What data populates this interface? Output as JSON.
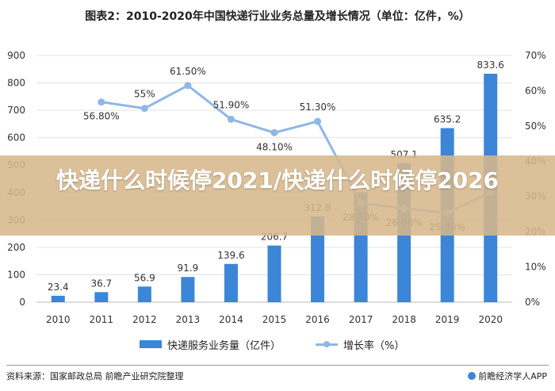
{
  "chart_data": {
    "type": "bar",
    "title": "图表2：2010-2020年中国快递行业业务总量及增长情况（单位：亿件，%）",
    "categories": [
      "2010",
      "2011",
      "2012",
      "2013",
      "2014",
      "2015",
      "2016",
      "2017",
      "2018",
      "2019",
      "2020"
    ],
    "series": [
      {
        "name": "快递服务业务量（亿件）",
        "type": "bar",
        "axis": "left",
        "values": [
          23.4,
          36.7,
          56.9,
          91.9,
          139.6,
          206.7,
          312.8,
          400.6,
          507.1,
          635.2,
          833.6
        ],
        "labels": [
          "23.4",
          "36.7",
          "56.9",
          "91.9",
          "139.6",
          "206.7",
          "312.8",
          "",
          "507.1",
          "635.2",
          "833.6"
        ]
      },
      {
        "name": "增长率（%）",
        "type": "line",
        "axis": "right",
        "values": [
          null,
          56.8,
          55.0,
          61.5,
          51.9,
          48.1,
          51.3,
          28.1,
          26.6,
          25.3,
          31.2
        ],
        "labels": [
          "",
          "56.80%",
          "55%",
          "61.50%",
          "51.90%",
          "48.10%",
          "51.30%",
          "28.10%",
          "26.60%",
          "25.30%",
          ""
        ]
      }
    ],
    "y_left": {
      "min": 0,
      "max": 900,
      "ticks": [
        "0",
        "100",
        "200",
        "300",
        "400",
        "500",
        "600",
        "700",
        "800",
        "900"
      ]
    },
    "y_right": {
      "min": 0,
      "max": 70,
      "ticks": [
        "0%",
        "10%",
        "20%",
        "30%",
        "40%",
        "50%",
        "60%",
        "70%"
      ]
    },
    "grid": true,
    "legend": "bottom",
    "colors": {
      "bar": "#3d85d6",
      "line": "#8fb7e6",
      "grid": "#e3e3e3",
      "text": "#333333"
    }
  },
  "footer": {
    "source": "资料来源：国家邮政总局 前瞻产业研究院整理",
    "brand": "前瞻经济学人APP"
  },
  "overlay": {
    "text": "快递什么时候停2021/快递什么时候停2026"
  }
}
